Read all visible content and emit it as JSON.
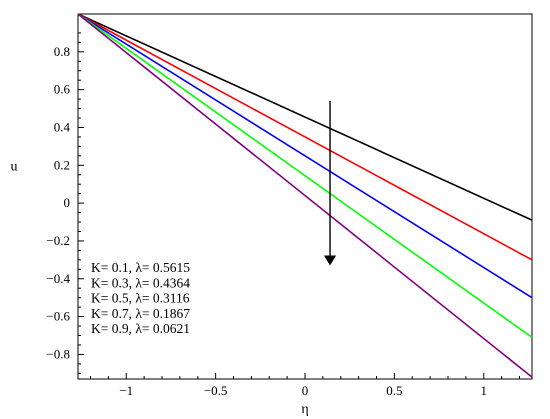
{
  "chart_data": {
    "type": "line",
    "title": "",
    "xlabel": "η",
    "ylabel": "u",
    "xlim": [
      -1.27,
      1.27
    ],
    "ylim": [
      -0.93,
      1.0
    ],
    "xticks": [
      -1,
      -0.5,
      0,
      0.5,
      1
    ],
    "xtick_labels": [
      "−1",
      "−0.5",
      "0",
      "0.5",
      "1"
    ],
    "yticks": [
      0.8,
      0.6,
      0.4,
      0.2,
      0,
      -0.2,
      -0.4,
      -0.6,
      -0.8
    ],
    "ytick_labels": [
      "0.8",
      "0.6",
      "0.4",
      "0.2",
      "0",
      "−0.2",
      "−0.4",
      "−0.6",
      "−0.8"
    ],
    "grid": false,
    "legend": {
      "placement": "bottom-left",
      "entries": [
        "K= 0.1, λ= 0.5615",
        "K= 0.3, λ= 0.4364",
        "K= 0.5, λ= 0.3116",
        "K= 0.7, λ= 0.1867",
        "K= 0.9, λ= 0.0621"
      ]
    },
    "series": [
      {
        "color": "#000000",
        "x": [
          -1.27,
          1.27
        ],
        "y": [
          1.0,
          -0.09
        ]
      },
      {
        "color": "#ff0000",
        "x": [
          -1.27,
          1.27
        ],
        "y": [
          1.0,
          -0.3
        ]
      },
      {
        "color": "#0000ff",
        "x": [
          -1.27,
          1.27
        ],
        "y": [
          1.0,
          -0.5
        ]
      },
      {
        "color": "#00ff00",
        "x": [
          -1.27,
          1.27
        ],
        "y": [
          1.0,
          -0.71
        ]
      },
      {
        "color": "#800080",
        "x": [
          -1.27,
          1.27
        ],
        "y": [
          1.0,
          -0.92
        ]
      }
    ],
    "annotation_arrow": {
      "x_start": 0.14,
      "y_start": 0.54,
      "x_end": 0.14,
      "y_end": -0.33,
      "direction": "increasing K"
    }
  }
}
